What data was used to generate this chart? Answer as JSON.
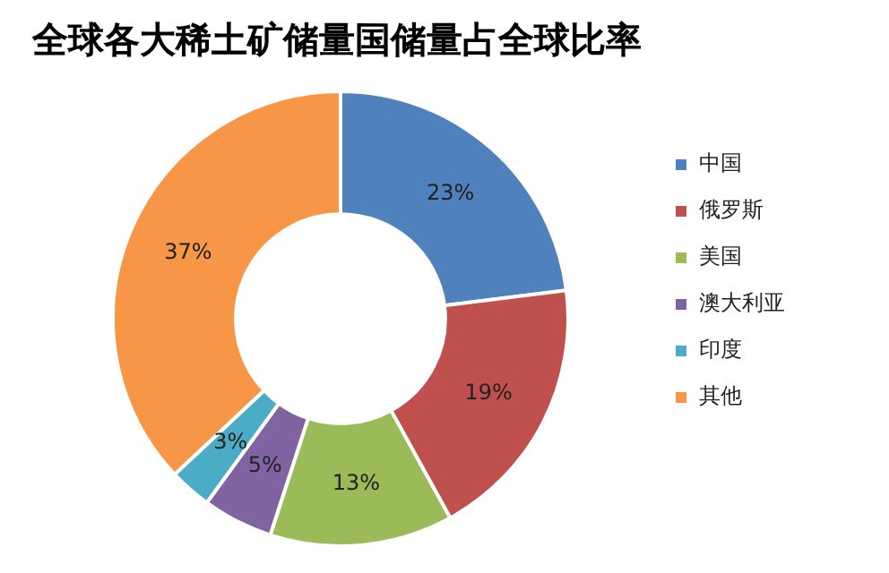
{
  "chart_data": {
    "type": "donut",
    "title": "全球各大稀土矿储量国储量占全球比率",
    "categories": [
      "中国",
      "俄罗斯",
      "美国",
      "澳大利亚",
      "印度",
      "其他"
    ],
    "values": [
      23,
      19,
      13,
      5,
      3,
      37
    ],
    "colors": [
      "#4f81bd",
      "#c0504d",
      "#9bbb59",
      "#8064a2",
      "#4bacc6",
      "#f79646"
    ],
    "value_labels": [
      "23%",
      "19%",
      "13%",
      "5%",
      "3%",
      "37%"
    ],
    "legend": "right"
  }
}
